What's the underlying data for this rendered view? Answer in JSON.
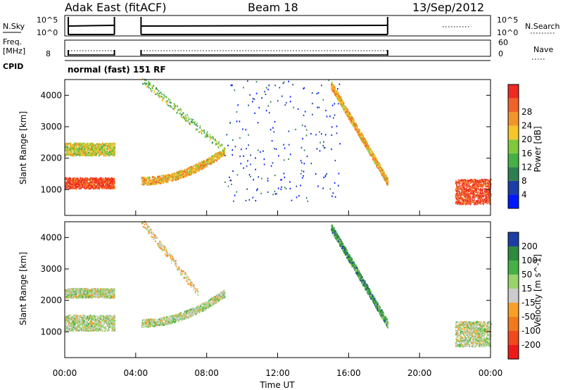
{
  "header": {
    "station": "Adak East (fitACF)",
    "beam": "Beam 18",
    "date": "13/Sep/2012"
  },
  "strip_labels": {
    "nsky": "N.Sky",
    "nsky_top": "10^5",
    "nsky_bottom": "10^0",
    "nsearch": "N.Search",
    "nsearch_top": "10^5",
    "nsearch_bottom": "10^0",
    "freq_line1": "Freq.",
    "freq_line2": "[MHz]",
    "freq_tick": "8",
    "nave": "Nave",
    "nave_top": "60",
    "nave_bottom": "0",
    "cpid": "CPID",
    "cpid_text": "normal (fast) 151 RF"
  },
  "colors": {
    "frame": "#000000",
    "background": "#ffffff"
  },
  "chart_data": [
    {
      "type": "heatmap",
      "title": "",
      "xlabel": "",
      "ylabel": "Slant Range [km]",
      "x_range_hours": [
        0,
        24
      ],
      "ylim": [
        180,
        4500
      ],
      "yticks": [
        "1000",
        "2000",
        "3000",
        "4000"
      ],
      "colorbar_label": "Power [dB]",
      "colorbar_ticks": [
        "4",
        "8",
        "12",
        "16",
        "20",
        "24",
        "28"
      ],
      "colorbar_colors": [
        "#0018ff",
        "#1c3ea6",
        "#2e7f4f",
        "#45b045",
        "#80c83c",
        "#f6c52a",
        "#f2952a",
        "#f06328",
        "#ee2a22"
      ],
      "data_gaps_hours": [
        [
          2.8,
          4.3
        ],
        [
          18.2,
          19.8
        ],
        [
          20.1,
          22.0
        ]
      ],
      "features": [
        {
          "name": "band near 1000-1300 km",
          "x_hours": [
            0,
            2.8
          ],
          "range_km": [
            1000,
            1350
          ],
          "dominant_power_db": 28
        },
        {
          "name": "band near 2100-2400 km",
          "x_hours": [
            0,
            2.8
          ],
          "range_km": [
            2050,
            2450
          ],
          "dominant_power_db": 18
        },
        {
          "name": "rising arc",
          "x_hours": [
            4.3,
            9.0
          ],
          "range_km": [
            1000,
            2200
          ],
          "dominant_power_db": 24
        },
        {
          "name": "upper arc",
          "x_hours": [
            4.3,
            9.0
          ],
          "range_km": [
            2200,
            4500
          ],
          "dominant_power_db": 14
        },
        {
          "name": "sparse weak scatter",
          "x_hours": [
            9.0,
            15.5
          ],
          "range_km": [
            600,
            4500
          ],
          "dominant_power_db": 6
        },
        {
          "name": "descending arc",
          "x_hours": [
            15.0,
            18.2
          ],
          "range_km": [
            1200,
            4300
          ],
          "dominant_power_db": 24
        },
        {
          "name": "late echoes",
          "x_hours": [
            22.0,
            24.0
          ],
          "range_km": [
            500,
            1300
          ],
          "dominant_power_db": 28
        }
      ]
    },
    {
      "type": "heatmap",
      "title": "",
      "xlabel": "Time UT",
      "ylabel": "Slant Range [km]",
      "x_range_hours": [
        0,
        24
      ],
      "xticks": [
        "00:00",
        "04:00",
        "08:00",
        "12:00",
        "16:00",
        "20:00",
        "00:00"
      ],
      "ylim": [
        180,
        4500
      ],
      "yticks": [
        "1000",
        "2000",
        "3000",
        "4000"
      ],
      "colorbar_label": "Velocity [m s^-1]",
      "colorbar_ticks": [
        "200",
        "100",
        "50",
        "15",
        "-15",
        "-50",
        "-100",
        "-200"
      ],
      "colorbar_colors": [
        "#1c3ea6",
        "#2e8a3e",
        "#45b045",
        "#9ad36a",
        "#cccccc",
        "#f6a028",
        "#f07a1e",
        "#f04a1c",
        "#ee1a1a"
      ],
      "data_gaps_hours": [
        [
          2.8,
          4.3
        ],
        [
          18.2,
          19.8
        ],
        [
          20.1,
          22.0
        ]
      ],
      "features": [
        {
          "name": "ground scatter band",
          "x_hours": [
            0,
            2.8
          ],
          "range_km": [
            1000,
            1500
          ],
          "dominant_velocity": 0
        },
        {
          "name": "ground scatter band",
          "x_hours": [
            0,
            2.8
          ],
          "range_km": [
            2050,
            2350
          ],
          "dominant_velocity": 0
        },
        {
          "name": "rising arc",
          "x_hours": [
            4.3,
            9.0
          ],
          "range_km": [
            1000,
            2200
          ],
          "dominant_velocity": 0
        },
        {
          "name": "upper arc",
          "x_hours": [
            4.3,
            7.5
          ],
          "range_km": [
            2200,
            4500
          ],
          "dominant_velocity": -50
        },
        {
          "name": "descending arc",
          "x_hours": [
            15.0,
            18.2
          ],
          "range_km": [
            1200,
            4300
          ],
          "dominant_velocity": 50
        },
        {
          "name": "late echoes",
          "x_hours": [
            22.0,
            24.0
          ],
          "range_km": [
            500,
            1300
          ],
          "dominant_velocity": 0
        }
      ]
    }
  ]
}
